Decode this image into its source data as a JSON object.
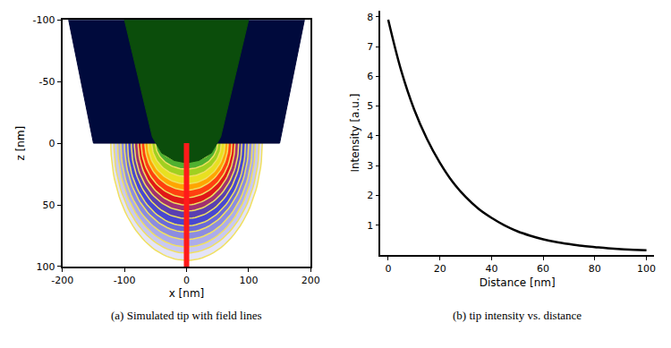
{
  "chart_data": [
    {
      "type": "field_map",
      "caption": "(a) Simulated tip with field lines",
      "x_label": "x [nm]",
      "y_label": "z [nm]",
      "xlim": [
        -200,
        200
      ],
      "xticks": [
        -200,
        -100,
        0,
        100,
        200
      ],
      "ylim": [
        100,
        -100
      ],
      "yticks": [
        -100,
        -50,
        0,
        50,
        100
      ],
      "grid": false,
      "tip": [
        {
          "x": [
            -190,
            190,
            150,
            -150
          ],
          "z": [
            -100,
            -100,
            0,
            0
          ],
          "color": "#000a3c"
        },
        {
          "x": [
            -100,
            100,
            55,
            40,
            20,
            0,
            -20,
            -40,
            -55
          ],
          "z": [
            -100,
            -100,
            -5,
            8,
            14,
            16,
            14,
            8,
            -5
          ],
          "color": "#0b4d0b"
        }
      ],
      "field_lines": {
        "a": [
          45,
          50,
          56,
          62,
          67,
          73,
          78,
          84,
          89,
          95,
          100,
          106,
          111,
          117,
          122
        ],
        "b": [
          15,
          21,
          27,
          33,
          38,
          44,
          50,
          55,
          61,
          67,
          72,
          78,
          84,
          89,
          95
        ],
        "color": "#f0e060",
        "colors": [
          "#1f8f1f",
          "#4fb030",
          "#a0d020",
          "#e8e020",
          "#ffa500",
          "#ff4010",
          "#e01818",
          "#a03070",
          "#5a40b0",
          "#4848d0",
          "#6a6ad8",
          "#8c8ce0",
          "#acacea",
          "#c8c8f2",
          "#e4e4f8"
        ]
      },
      "probe_line": {
        "x": [
          0,
          0
        ],
        "z": [
          0,
          100
        ],
        "color": "#ff1a1a"
      }
    },
    {
      "type": "line",
      "caption": "(b) tip intensity vs. distance",
      "x_label": "Distance [nm]",
      "y_label": "Intensity [a.u.]",
      "x": [
        0,
        5,
        10,
        15,
        20,
        25,
        30,
        35,
        40,
        45,
        50,
        55,
        60,
        65,
        70,
        75,
        80,
        85,
        90,
        95,
        100
      ],
      "values": [
        7.9,
        6.2,
        4.9,
        3.9,
        3.1,
        2.45,
        1.95,
        1.55,
        1.25,
        1.0,
        0.8,
        0.65,
        0.53,
        0.44,
        0.37,
        0.31,
        0.27,
        0.23,
        0.2,
        0.18,
        0.16
      ],
      "color": "#000000",
      "xlim": [
        -3,
        103
      ],
      "xticks": [
        0,
        20,
        40,
        60,
        80,
        100
      ],
      "ylim": [
        0,
        8.2
      ],
      "yticks": [
        1,
        2,
        3,
        4,
        5,
        6,
        7,
        8
      ],
      "grid": false
    }
  ]
}
